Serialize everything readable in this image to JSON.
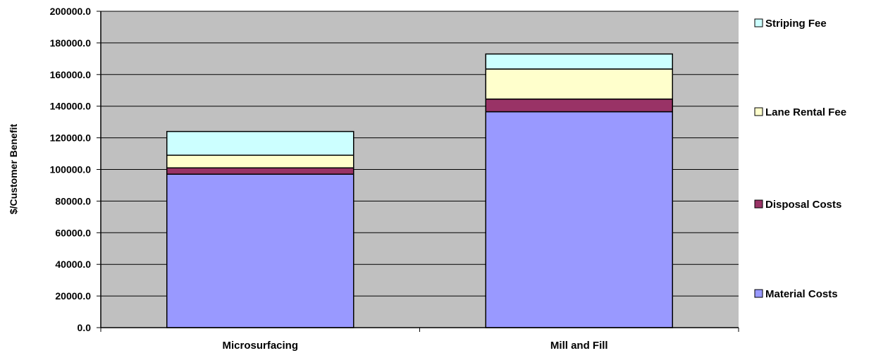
{
  "chart_data": {
    "type": "bar",
    "stacked": true,
    "ylabel": "$/Customer Benefit",
    "xlabel": "",
    "ylim": [
      0,
      200000
    ],
    "ytick_step": 20000,
    "ytick_labels": [
      "0.0",
      "20000.0",
      "40000.0",
      "60000.0",
      "80000.0",
      "100000.0",
      "120000.0",
      "140000.0",
      "160000.0",
      "180000.0",
      "200000.0"
    ],
    "categories": [
      "Microsurfacing",
      "Mill and Fill"
    ],
    "series": [
      {
        "name": "Material Costs",
        "values": [
          97000,
          136500
        ],
        "color": "#9999FF"
      },
      {
        "name": "Disposal Costs",
        "values": [
          4000,
          8000
        ],
        "color": "#993366"
      },
      {
        "name": "Lane Rental Fee",
        "values": [
          8000,
          19000
        ],
        "color": "#FFFFCC"
      },
      {
        "name": "Striping Fee",
        "values": [
          15000,
          9500
        ],
        "color": "#CCFFFF"
      }
    ],
    "grid": true,
    "plot_background": "#C0C0C0",
    "legend": "right"
  }
}
